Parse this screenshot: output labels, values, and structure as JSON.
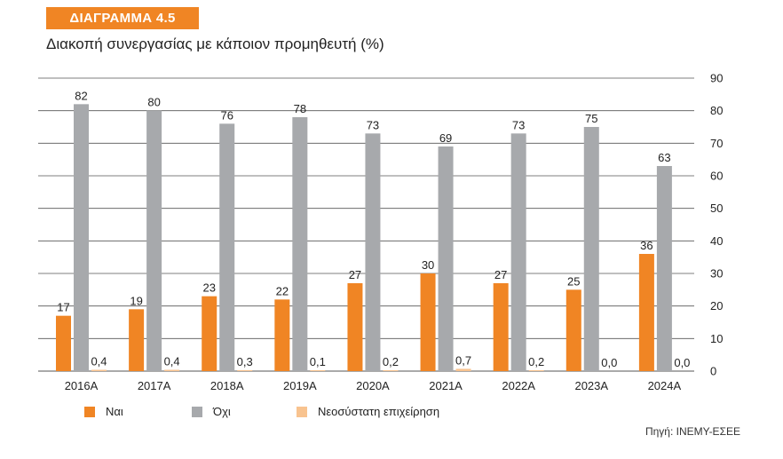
{
  "header": {
    "badge": "ΔΙΑΓΡΑΜΜΑ 4.5",
    "title": "Διακοπή συνεργασίας με κάποιον προμηθευτή (%)"
  },
  "source": "Πηγή: ΙΝΕΜΥ-ΕΣΕΕ",
  "colors": {
    "accent": "#F08524",
    "yes": "#F08524",
    "no": "#A7A9AC",
    "new": "#F8C38F",
    "grid": "#555555"
  },
  "chart_data": {
    "type": "bar",
    "categories": [
      "2016Α",
      "2017Α",
      "2018Α",
      "2019Α",
      "2020Α",
      "2021Α",
      "2022Α",
      "2023Α",
      "2024Α"
    ],
    "series": [
      {
        "name": "Ναι",
        "values": [
          17,
          19,
          23,
          22,
          27,
          30,
          27,
          25,
          36
        ],
        "labels": [
          "17",
          "19",
          "23",
          "22",
          "27",
          "30",
          "27",
          "25",
          "36"
        ]
      },
      {
        "name": "Όχι",
        "values": [
          82,
          80,
          76,
          78,
          73,
          69,
          73,
          75,
          63
        ],
        "labels": [
          "82",
          "80",
          "76",
          "78",
          "73",
          "69",
          "73",
          "75",
          "63"
        ]
      },
      {
        "name": "Νεοσύστατη επιχείρηση",
        "values": [
          0.4,
          0.4,
          0.3,
          0.1,
          0.2,
          0.7,
          0.2,
          0.0,
          0.0
        ],
        "labels": [
          "0,4",
          "0,4",
          "0,3",
          "0,1",
          "0,2",
          "0,7",
          "0,2",
          "0,0",
          "0,0"
        ]
      }
    ],
    "y_ticks": [
      "0",
      "10",
      "20",
      "30",
      "40",
      "50",
      "60",
      "70",
      "80",
      "90"
    ],
    "ylim": [
      0,
      90
    ],
    "y_axis_side": "right",
    "grid": true,
    "legend_position": "bottom-left"
  }
}
